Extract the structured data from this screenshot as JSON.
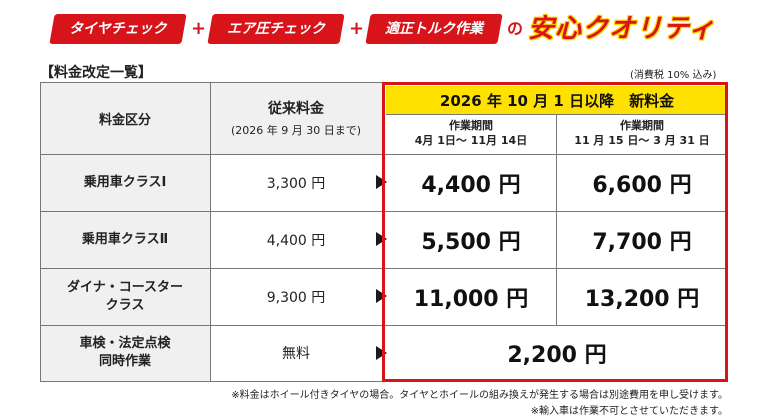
{
  "banner": {
    "tag1": "タイヤチェック",
    "plus1": "+",
    "tag2": "エア圧チェック",
    "plus2": "+",
    "tag3": "適正トルク作業",
    "connector": "の",
    "headline": "安心クオリティ"
  },
  "section_title": "【料金改定一覧】",
  "tax_note": "(消費税 10% 込み)",
  "table": {
    "col_category": "料金区分",
    "col_old_title": "従来料金",
    "col_old_sub": "(2026 年 9 月 30 日まで)",
    "new_header": "2026 年 10 月 1 日以降　新料金",
    "period1_title": "作業期間",
    "period1_range": "4月 1日～ 11月 14日",
    "period2_title": "作業期間",
    "period2_range": "11 月 15 日～ 3 月 31 日",
    "rows": [
      {
        "label": "乗用車クラスⅠ",
        "old": "3,300 円",
        "new1": "4,400 円",
        "new2": "6,600 円"
      },
      {
        "label": "乗用車クラスⅡ",
        "old": "4,400 円",
        "new1": "5,500 円",
        "new2": "7,700 円"
      },
      {
        "label_line1": "ダイナ・コースター",
        "label_line2": "クラス",
        "old": "9,300 円",
        "new1": "11,000 円",
        "new2": "13,200 円"
      },
      {
        "label_line1": "車検・法定点検",
        "label_line2": "同時作業",
        "old": "無料",
        "new_combined": "2,200 円"
      }
    ]
  },
  "footnotes": {
    "line1": "※料金はホイール付きタイヤの場合。タイヤとホイールの組み換えが発生する場合は別途費用を申し受けます。",
    "line2": "※輸入車は作業不可とさせていただきます。"
  },
  "colors": {
    "accent_red": "#d7141a",
    "highlight_yellow": "#ffe100",
    "header_grey": "#f0f0f0"
  }
}
